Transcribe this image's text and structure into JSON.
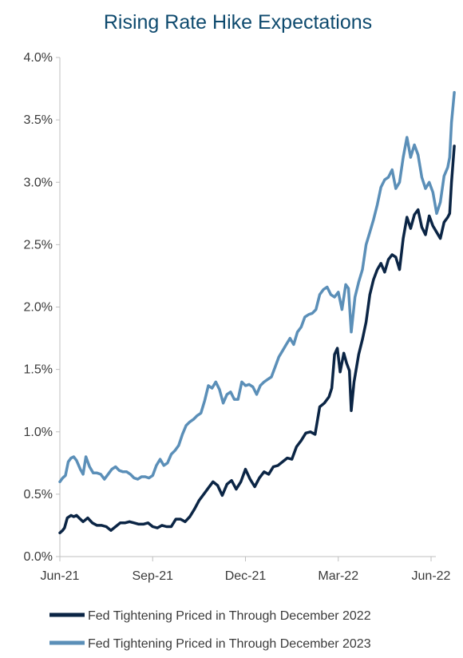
{
  "chart_data": {
    "type": "line",
    "title": "Rising Rate Hike Expectations",
    "xlabel": "",
    "ylabel": "",
    "ylim": [
      0,
      4.0
    ],
    "yticks": [
      "0.0%",
      "0.5%",
      "1.0%",
      "1.5%",
      "2.0%",
      "2.5%",
      "3.0%",
      "3.5%",
      "4.0%"
    ],
    "xticks": [
      "Jun-21",
      "Sep-21",
      "Dec-21",
      "Mar-22",
      "Jun-22"
    ],
    "grid": false,
    "legend_position": "bottom",
    "series": [
      {
        "name": "Fed Tightening Priced in Through December 2022",
        "color": "#0b2545",
        "points": [
          [
            0,
            0.19
          ],
          [
            0.03,
            0.21
          ],
          [
            0.05,
            0.23
          ],
          [
            0.08,
            0.31
          ],
          [
            0.12,
            0.33
          ],
          [
            0.15,
            0.32
          ],
          [
            0.18,
            0.33
          ],
          [
            0.22,
            0.3
          ],
          [
            0.25,
            0.28
          ],
          [
            0.3,
            0.31
          ],
          [
            0.35,
            0.27
          ],
          [
            0.4,
            0.25
          ],
          [
            0.45,
            0.25
          ],
          [
            0.5,
            0.24
          ],
          [
            0.55,
            0.21
          ],
          [
            0.6,
            0.24
          ],
          [
            0.65,
            0.27
          ],
          [
            0.7,
            0.27
          ],
          [
            0.75,
            0.28
          ],
          [
            0.8,
            0.27
          ],
          [
            0.85,
            0.26
          ],
          [
            0.9,
            0.26
          ],
          [
            0.95,
            0.27
          ],
          [
            1.0,
            0.24
          ],
          [
            1.05,
            0.23
          ],
          [
            1.1,
            0.25
          ],
          [
            1.15,
            0.24
          ],
          [
            1.2,
            0.24
          ],
          [
            1.25,
            0.3
          ],
          [
            1.3,
            0.3
          ],
          [
            1.35,
            0.28
          ],
          [
            1.4,
            0.32
          ],
          [
            1.45,
            0.38
          ],
          [
            1.5,
            0.45
          ],
          [
            1.55,
            0.5
          ],
          [
            1.6,
            0.55
          ],
          [
            1.65,
            0.6
          ],
          [
            1.7,
            0.57
          ],
          [
            1.75,
            0.49
          ],
          [
            1.8,
            0.58
          ],
          [
            1.85,
            0.61
          ],
          [
            1.9,
            0.54
          ],
          [
            1.95,
            0.6
          ],
          [
            2.0,
            0.7
          ],
          [
            2.05,
            0.62
          ],
          [
            2.1,
            0.56
          ],
          [
            2.15,
            0.63
          ],
          [
            2.2,
            0.68
          ],
          [
            2.25,
            0.66
          ],
          [
            2.3,
            0.72
          ],
          [
            2.35,
            0.73
          ],
          [
            2.4,
            0.76
          ],
          [
            2.45,
            0.79
          ],
          [
            2.5,
            0.78
          ],
          [
            2.55,
            0.88
          ],
          [
            2.6,
            0.93
          ],
          [
            2.65,
            0.99
          ],
          [
            2.7,
            1.0
          ],
          [
            2.75,
            0.98
          ],
          [
            2.8,
            1.2
          ],
          [
            2.85,
            1.23
          ],
          [
            2.9,
            1.28
          ],
          [
            2.93,
            1.35
          ],
          [
            2.96,
            1.62
          ],
          [
            2.99,
            1.67
          ],
          [
            3.02,
            1.48
          ],
          [
            3.06,
            1.63
          ],
          [
            3.09,
            1.55
          ],
          [
            3.12,
            1.49
          ],
          [
            3.14,
            1.17
          ],
          [
            3.17,
            1.4
          ],
          [
            3.22,
            1.62
          ],
          [
            3.26,
            1.74
          ],
          [
            3.3,
            1.88
          ],
          [
            3.34,
            2.1
          ],
          [
            3.38,
            2.22
          ],
          [
            3.42,
            2.3
          ],
          [
            3.46,
            2.35
          ],
          [
            3.5,
            2.28
          ],
          [
            3.54,
            2.38
          ],
          [
            3.58,
            2.42
          ],
          [
            3.62,
            2.4
          ],
          [
            3.66,
            2.3
          ],
          [
            3.7,
            2.55
          ],
          [
            3.74,
            2.72
          ],
          [
            3.78,
            2.63
          ],
          [
            3.82,
            2.74
          ],
          [
            3.86,
            2.78
          ],
          [
            3.9,
            2.64
          ],
          [
            3.94,
            2.58
          ],
          [
            3.98,
            2.73
          ],
          [
            4.02,
            2.65
          ],
          [
            4.06,
            2.6
          ],
          [
            4.1,
            2.55
          ],
          [
            4.14,
            2.68
          ],
          [
            4.18,
            2.72
          ],
          [
            4.2,
            2.75
          ],
          [
            4.22,
            3.0
          ],
          [
            4.25,
            3.29
          ]
        ]
      },
      {
        "name": "Fed Tightening Priced in Through December 2023",
        "color": "#5b8fb8",
        "points": [
          [
            0,
            0.6
          ],
          [
            0.03,
            0.63
          ],
          [
            0.06,
            0.65
          ],
          [
            0.09,
            0.76
          ],
          [
            0.12,
            0.79
          ],
          [
            0.15,
            0.8
          ],
          [
            0.18,
            0.77
          ],
          [
            0.22,
            0.7
          ],
          [
            0.25,
            0.66
          ],
          [
            0.28,
            0.8
          ],
          [
            0.32,
            0.72
          ],
          [
            0.36,
            0.67
          ],
          [
            0.4,
            0.67
          ],
          [
            0.44,
            0.66
          ],
          [
            0.48,
            0.62
          ],
          [
            0.52,
            0.66
          ],
          [
            0.56,
            0.7
          ],
          [
            0.6,
            0.72
          ],
          [
            0.64,
            0.69
          ],
          [
            0.68,
            0.68
          ],
          [
            0.72,
            0.68
          ],
          [
            0.76,
            0.66
          ],
          [
            0.8,
            0.63
          ],
          [
            0.84,
            0.62
          ],
          [
            0.88,
            0.64
          ],
          [
            0.92,
            0.64
          ],
          [
            0.96,
            0.63
          ],
          [
            1.0,
            0.65
          ],
          [
            1.04,
            0.73
          ],
          [
            1.08,
            0.78
          ],
          [
            1.12,
            0.73
          ],
          [
            1.16,
            0.75
          ],
          [
            1.2,
            0.82
          ],
          [
            1.24,
            0.85
          ],
          [
            1.28,
            0.89
          ],
          [
            1.32,
            0.98
          ],
          [
            1.36,
            1.05
          ],
          [
            1.4,
            1.08
          ],
          [
            1.44,
            1.1
          ],
          [
            1.48,
            1.13
          ],
          [
            1.52,
            1.15
          ],
          [
            1.56,
            1.25
          ],
          [
            1.6,
            1.37
          ],
          [
            1.64,
            1.35
          ],
          [
            1.68,
            1.4
          ],
          [
            1.72,
            1.34
          ],
          [
            1.76,
            1.23
          ],
          [
            1.8,
            1.3
          ],
          [
            1.84,
            1.32
          ],
          [
            1.88,
            1.26
          ],
          [
            1.92,
            1.26
          ],
          [
            1.96,
            1.4
          ],
          [
            2.0,
            1.37
          ],
          [
            2.04,
            1.38
          ],
          [
            2.08,
            1.36
          ],
          [
            2.12,
            1.3
          ],
          [
            2.16,
            1.37
          ],
          [
            2.2,
            1.4
          ],
          [
            2.24,
            1.42
          ],
          [
            2.28,
            1.44
          ],
          [
            2.32,
            1.52
          ],
          [
            2.36,
            1.6
          ],
          [
            2.4,
            1.65
          ],
          [
            2.44,
            1.7
          ],
          [
            2.48,
            1.75
          ],
          [
            2.52,
            1.7
          ],
          [
            2.56,
            1.8
          ],
          [
            2.6,
            1.84
          ],
          [
            2.64,
            1.92
          ],
          [
            2.68,
            1.94
          ],
          [
            2.72,
            1.95
          ],
          [
            2.76,
            1.98
          ],
          [
            2.8,
            2.1
          ],
          [
            2.84,
            2.14
          ],
          [
            2.88,
            2.16
          ],
          [
            2.92,
            2.1
          ],
          [
            2.96,
            2.08
          ],
          [
            3.0,
            2.12
          ],
          [
            3.04,
            1.98
          ],
          [
            3.08,
            2.18
          ],
          [
            3.11,
            2.15
          ],
          [
            3.14,
            1.8
          ],
          [
            3.18,
            2.08
          ],
          [
            3.22,
            2.2
          ],
          [
            3.26,
            2.3
          ],
          [
            3.3,
            2.5
          ],
          [
            3.34,
            2.6
          ],
          [
            3.38,
            2.7
          ],
          [
            3.42,
            2.82
          ],
          [
            3.46,
            2.96
          ],
          [
            3.5,
            3.02
          ],
          [
            3.54,
            3.04
          ],
          [
            3.58,
            3.1
          ],
          [
            3.62,
            2.95
          ],
          [
            3.66,
            3.0
          ],
          [
            3.7,
            3.2
          ],
          [
            3.74,
            3.36
          ],
          [
            3.78,
            3.2
          ],
          [
            3.82,
            3.3
          ],
          [
            3.86,
            3.22
          ],
          [
            3.9,
            3.04
          ],
          [
            3.94,
            2.95
          ],
          [
            3.98,
            3.0
          ],
          [
            4.02,
            2.92
          ],
          [
            4.06,
            2.75
          ],
          [
            4.1,
            2.84
          ],
          [
            4.14,
            3.05
          ],
          [
            4.18,
            3.12
          ],
          [
            4.2,
            3.2
          ],
          [
            4.22,
            3.48
          ],
          [
            4.25,
            3.72
          ]
        ]
      }
    ]
  }
}
